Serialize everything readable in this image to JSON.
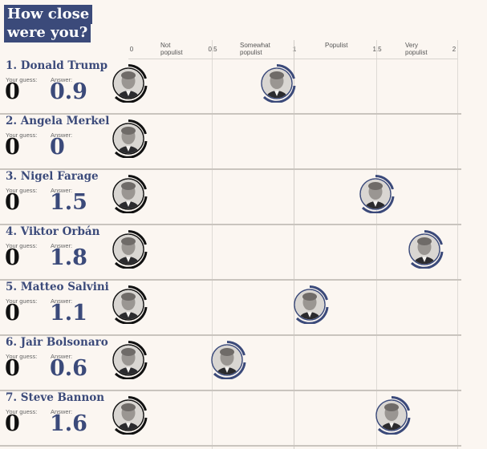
{
  "title": "How close were you?",
  "scale": {
    "ticks": [
      "0",
      "0.5",
      "1",
      "1.5",
      "2"
    ],
    "categories": [
      "Not populist",
      "Somewhat populist",
      "Populist",
      "Very populist"
    ]
  },
  "labels": {
    "guess": "Your guess:",
    "answer": "Answer:"
  },
  "colors": {
    "accent": "#3b4a7a",
    "background": "#fbf6f1",
    "guessRing": "#111111"
  },
  "people": [
    {
      "name": "1. Donald Trump",
      "guess": "0",
      "answer": "0.9",
      "answer_value": 0.9,
      "icon": "donald-trump-portrait-icon"
    },
    {
      "name": "2. Angela Merkel",
      "guess": "0",
      "answer": "0",
      "answer_value": 0,
      "icon": "angela-merkel-portrait-icon"
    },
    {
      "name": "3. Nigel Farage",
      "guess": "0",
      "answer": "1.5",
      "answer_value": 1.5,
      "icon": "nigel-farage-portrait-icon"
    },
    {
      "name": "4. Viktor Orbán",
      "guess": "0",
      "answer": "1.8",
      "answer_value": 1.8,
      "icon": "viktor-orban-portrait-icon"
    },
    {
      "name": "5. Matteo Salvini",
      "guess": "0",
      "answer": "1.1",
      "answer_value": 1.1,
      "icon": "matteo-salvini-portrait-icon"
    },
    {
      "name": "6. Jair Bolsonaro",
      "guess": "0",
      "answer": "0.6",
      "answer_value": 0.6,
      "icon": "jair-bolsonaro-portrait-icon"
    },
    {
      "name": "7. Steve Bannon",
      "guess": "0",
      "answer": "1.6",
      "answer_value": 1.6,
      "icon": "steve-bannon-portrait-icon"
    }
  ]
}
